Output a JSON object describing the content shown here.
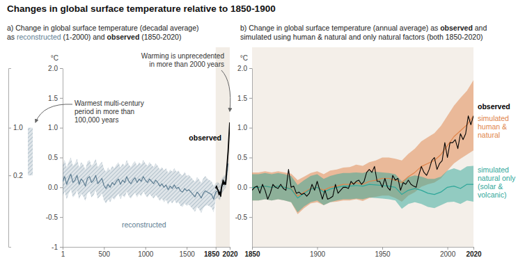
{
  "title": "Changes in global surface temperature relative to 1850-1900",
  "chart_data": [
    {
      "type": "line",
      "subtitle": [
        "a) Change in global surface temperature (decadal average)",
        "as reconstructed (1-2000) and observed (1850-2020)"
      ],
      "ylabel": "°C",
      "xlim": [
        1,
        2020
      ],
      "xticks": [
        1,
        500,
        1000,
        1500,
        1850,
        2020
      ],
      "ylim": [
        -1,
        2
      ],
      "yticks": [
        -1,
        -0.5,
        {
          "value": 0,
          "label": "0.0"
        },
        0.5,
        {
          "value": 1,
          "label": "1.0"
        },
        1.5,
        {
          "value": 2,
          "label": "2.0"
        }
      ],
      "shaded_period": [
        1850,
        2020
      ],
      "series": [
        {
          "name": "reconstructed",
          "color": "#5d7d92",
          "x": [
            1,
            25,
            50,
            75,
            100,
            125,
            150,
            175,
            200,
            225,
            250,
            275,
            300,
            325,
            350,
            375,
            400,
            425,
            450,
            475,
            500,
            525,
            550,
            575,
            600,
            625,
            650,
            675,
            700,
            725,
            750,
            775,
            800,
            825,
            850,
            875,
            900,
            925,
            950,
            975,
            1000,
            1025,
            1050,
            1075,
            1100,
            1125,
            1150,
            1175,
            1200,
            1225,
            1250,
            1275,
            1300,
            1325,
            1350,
            1375,
            1400,
            1425,
            1450,
            1475,
            1500,
            1525,
            1550,
            1575,
            1600,
            1625,
            1650,
            1675,
            1700,
            1725,
            1750,
            1775,
            1800,
            1825,
            1850,
            1875,
            1900,
            1925,
            1950,
            1975,
            2000
          ],
          "values": [
            0.1,
            0.18,
            0.05,
            0.15,
            0.22,
            0.08,
            0.12,
            0.2,
            0.05,
            0.14,
            0.1,
            0.02,
            0.15,
            0.18,
            0.08,
            0.12,
            0.2,
            0.06,
            0.1,
            0.15,
            0.03,
            -0.02,
            0.05,
            0.0,
            0.08,
            0.04,
            0.1,
            0.14,
            0.05,
            0.12,
            0.08,
            0.18,
            0.1,
            0.06,
            0.12,
            0.16,
            0.08,
            0.14,
            0.1,
            0.18,
            0.12,
            0.08,
            0.14,
            0.1,
            0.06,
            0.12,
            0.08,
            0.02,
            0.06,
            0.0,
            0.04,
            -0.04,
            0.02,
            -0.02,
            0.04,
            -0.02,
            0.0,
            -0.06,
            -0.08,
            -0.02,
            -0.06,
            -0.04,
            -0.08,
            -0.12,
            -0.16,
            -0.08,
            -0.12,
            -0.18,
            -0.1,
            -0.06,
            -0.08,
            -0.1,
            -0.12,
            -0.2,
            -0.08,
            -0.06,
            -0.1,
            0.02,
            0.08,
            0.12,
            0.4
          ],
          "upper": [
            0.38,
            0.46,
            0.33,
            0.43,
            0.5,
            0.36,
            0.4,
            0.48,
            0.33,
            0.42,
            0.38,
            0.3,
            0.43,
            0.46,
            0.36,
            0.4,
            0.48,
            0.34,
            0.38,
            0.43,
            0.31,
            0.26,
            0.33,
            0.28,
            0.36,
            0.32,
            0.38,
            0.42,
            0.33,
            0.4,
            0.36,
            0.46,
            0.38,
            0.34,
            0.4,
            0.44,
            0.36,
            0.42,
            0.38,
            0.46,
            0.4,
            0.36,
            0.42,
            0.38,
            0.34,
            0.4,
            0.36,
            0.3,
            0.34,
            0.28,
            0.32,
            0.24,
            0.3,
            0.26,
            0.32,
            0.26,
            0.28,
            0.22,
            0.2,
            0.26,
            0.19,
            0.21,
            0.17,
            0.13,
            0.09,
            0.17,
            0.13,
            0.07,
            0.15,
            0.19,
            0.14,
            0.12,
            0.1,
            0.02,
            0.07,
            0.09,
            0.05,
            0.15,
            0.2,
            0.22,
            0.5
          ],
          "lower": [
            -0.15,
            -0.07,
            -0.2,
            -0.1,
            -0.03,
            -0.17,
            -0.13,
            -0.05,
            -0.2,
            -0.11,
            -0.15,
            -0.23,
            -0.1,
            -0.07,
            -0.17,
            -0.13,
            -0.05,
            -0.19,
            -0.15,
            -0.1,
            -0.22,
            -0.27,
            -0.2,
            -0.25,
            -0.17,
            -0.21,
            -0.15,
            -0.11,
            -0.2,
            -0.13,
            -0.17,
            -0.07,
            -0.15,
            -0.19,
            -0.13,
            -0.09,
            -0.17,
            -0.11,
            -0.15,
            -0.07,
            -0.13,
            -0.17,
            -0.11,
            -0.15,
            -0.19,
            -0.13,
            -0.17,
            -0.23,
            -0.19,
            -0.25,
            -0.21,
            -0.29,
            -0.23,
            -0.27,
            -0.21,
            -0.27,
            -0.25,
            -0.31,
            -0.33,
            -0.27,
            -0.31,
            -0.29,
            -0.33,
            -0.37,
            -0.41,
            -0.33,
            -0.37,
            -0.43,
            -0.35,
            -0.31,
            -0.3,
            -0.32,
            -0.34,
            -0.42,
            -0.2,
            -0.18,
            -0.22,
            -0.1,
            -0.04,
            0.0,
            0.28
          ]
        },
        {
          "name": "observed",
          "color": "#000000",
          "x": [
            1850,
            1860,
            1870,
            1880,
            1890,
            1900,
            1910,
            1920,
            1930,
            1940,
            1950,
            1960,
            1970,
            1980,
            1990,
            2000,
            2010,
            2020
          ],
          "values": [
            -0.02,
            0.02,
            -0.03,
            -0.05,
            -0.12,
            -0.08,
            -0.15,
            0.0,
            0.05,
            0.12,
            0.05,
            0.08,
            0.05,
            0.25,
            0.42,
            0.6,
            0.85,
            1.09
          ]
        }
      ],
      "annotations": [
        {
          "text": [
            "Warming is unprecedented",
            "in more than 2000 years"
          ]
        }
      ],
      "paleo_range": {
        "label": [
          "Warmest multi-century",
          "period in more than",
          "100,000 years"
        ],
        "values": [
          0.2,
          1.0
        ],
        "color": "#5d7d92",
        "ticks": [
          {
            "value": 0.2,
            "label": "0.2"
          },
          {
            "value": 1,
            "label": "1.0"
          }
        ]
      }
    },
    {
      "type": "line",
      "subtitle": [
        "b) Change in global surface temperature (annual average) as observed and",
        "simulated using human & natural and only natural factors (both 1850-2020)"
      ],
      "ylabel": "°C",
      "xlim": [
        1850,
        2020
      ],
      "xticks": [
        1850,
        1900,
        1950,
        2000,
        2020
      ],
      "ylim": [
        -1,
        2
      ],
      "yticks": [
        -0.5,
        {
          "value": 0,
          "label": "0.0"
        },
        0.5,
        {
          "value": 1,
          "label": "1.0"
        },
        1.5,
        {
          "value": 2,
          "label": "2.0"
        }
      ],
      "series": [
        {
          "name": "simulated human & natural",
          "color": "#e0844a",
          "x": [
            1850,
            1855,
            1860,
            1865,
            1870,
            1875,
            1880,
            1885,
            1890,
            1895,
            1900,
            1905,
            1910,
            1915,
            1920,
            1925,
            1930,
            1935,
            1940,
            1945,
            1950,
            1955,
            1960,
            1965,
            1970,
            1975,
            1980,
            1985,
            1990,
            1995,
            2000,
            2005,
            2010,
            2015,
            2020
          ],
          "values": [
            0.0,
            0.0,
            0.02,
            0.0,
            0.02,
            0.0,
            -0.02,
            -0.15,
            -0.08,
            -0.02,
            0.0,
            -0.05,
            0.0,
            0.02,
            0.05,
            0.05,
            0.08,
            0.05,
            0.1,
            0.12,
            0.15,
            0.15,
            0.12,
            0.08,
            0.18,
            0.25,
            0.35,
            0.4,
            0.45,
            0.55,
            0.7,
            0.85,
            0.95,
            1.05,
            1.2
          ],
          "upper": [
            0.25,
            0.25,
            0.27,
            0.25,
            0.27,
            0.25,
            0.23,
            0.12,
            0.18,
            0.24,
            0.27,
            0.22,
            0.28,
            0.3,
            0.33,
            0.34,
            0.38,
            0.36,
            0.42,
            0.45,
            0.5,
            0.5,
            0.48,
            0.45,
            0.56,
            0.65,
            0.77,
            0.84,
            0.91,
            1.03,
            1.2,
            1.37,
            1.5,
            1.62,
            1.8
          ],
          "lower": [
            -0.22,
            -0.22,
            -0.2,
            -0.22,
            -0.2,
            -0.22,
            -0.25,
            -0.45,
            -0.35,
            -0.27,
            -0.25,
            -0.3,
            -0.25,
            -0.24,
            -0.22,
            -0.22,
            -0.2,
            -0.23,
            -0.18,
            -0.16,
            -0.14,
            -0.14,
            -0.18,
            -0.24,
            -0.14,
            -0.08,
            0.01,
            0.05,
            0.08,
            0.15,
            0.28,
            0.4,
            0.48,
            0.55,
            0.62
          ]
        },
        {
          "name": "simulated natural only (solar & volcanic)",
          "color": "#2fa79a",
          "x": [
            1850,
            1855,
            1860,
            1865,
            1870,
            1875,
            1880,
            1885,
            1890,
            1895,
            1900,
            1905,
            1910,
            1915,
            1920,
            1925,
            1930,
            1935,
            1940,
            1945,
            1950,
            1955,
            1960,
            1965,
            1970,
            1975,
            1980,
            1985,
            1990,
            1995,
            2000,
            2005,
            2010,
            2015,
            2020
          ],
          "values": [
            0.0,
            0.0,
            0.02,
            0.0,
            0.02,
            0.0,
            -0.03,
            -0.18,
            -0.1,
            -0.03,
            0.0,
            -0.08,
            -0.03,
            0.0,
            0.02,
            0.02,
            0.03,
            0.02,
            0.05,
            0.04,
            0.03,
            0.02,
            0.0,
            -0.12,
            -0.05,
            -0.02,
            -0.05,
            -0.1,
            -0.12,
            -0.08,
            0.0,
            0.02,
            -0.02,
            0.05,
            0.05
          ],
          "upper": [
            0.22,
            0.22,
            0.24,
            0.22,
            0.24,
            0.22,
            0.19,
            0.04,
            0.12,
            0.19,
            0.22,
            0.14,
            0.19,
            0.22,
            0.24,
            0.24,
            0.25,
            0.24,
            0.27,
            0.26,
            0.25,
            0.24,
            0.22,
            0.1,
            0.17,
            0.2,
            0.18,
            0.14,
            0.14,
            0.18,
            0.28,
            0.32,
            0.28,
            0.35,
            0.36
          ],
          "lower": [
            -0.22,
            -0.22,
            -0.2,
            -0.22,
            -0.2,
            -0.22,
            -0.25,
            -0.42,
            -0.32,
            -0.25,
            -0.22,
            -0.3,
            -0.25,
            -0.22,
            -0.2,
            -0.2,
            -0.19,
            -0.2,
            -0.17,
            -0.18,
            -0.19,
            -0.2,
            -0.22,
            -0.36,
            -0.28,
            -0.25,
            -0.28,
            -0.33,
            -0.35,
            -0.3,
            -0.25,
            -0.24,
            -0.28,
            -0.22,
            -0.24
          ]
        },
        {
          "name": "observed",
          "color": "#000000",
          "x": [
            1850,
            1852,
            1854,
            1856,
            1858,
            1860,
            1862,
            1864,
            1866,
            1868,
            1870,
            1872,
            1874,
            1876,
            1878,
            1880,
            1882,
            1884,
            1886,
            1888,
            1890,
            1892,
            1894,
            1896,
            1898,
            1900,
            1902,
            1904,
            1906,
            1908,
            1910,
            1912,
            1914,
            1916,
            1918,
            1920,
            1922,
            1924,
            1926,
            1928,
            1930,
            1932,
            1934,
            1936,
            1938,
            1940,
            1942,
            1944,
            1946,
            1948,
            1950,
            1952,
            1954,
            1956,
            1958,
            1960,
            1962,
            1964,
            1966,
            1968,
            1970,
            1972,
            1974,
            1976,
            1978,
            1980,
            1982,
            1984,
            1986,
            1988,
            1990,
            1992,
            1994,
            1996,
            1998,
            2000,
            2002,
            2004,
            2006,
            2008,
            2010,
            2012,
            2014,
            2016,
            2018,
            2020
          ],
          "values": [
            -0.05,
            0.0,
            0.02,
            -0.1,
            0.05,
            -0.05,
            -0.2,
            -0.1,
            0.05,
            0.0,
            -0.02,
            0.05,
            -0.02,
            -0.05,
            0.3,
            0.0,
            0.02,
            -0.1,
            -0.08,
            -0.12,
            -0.1,
            -0.15,
            -0.1,
            0.05,
            -0.05,
            0.1,
            -0.05,
            -0.2,
            -0.05,
            -0.2,
            -0.18,
            -0.15,
            0.05,
            -0.1,
            -0.05,
            0.0,
            0.0,
            -0.02,
            0.1,
            0.05,
            0.1,
            0.12,
            0.05,
            0.1,
            0.25,
            0.3,
            0.25,
            0.35,
            0.1,
            0.1,
            0.0,
            0.15,
            0.0,
            -0.05,
            0.2,
            0.12,
            0.15,
            -0.05,
            0.08,
            0.05,
            0.12,
            0.05,
            0.02,
            0.0,
            0.2,
            0.35,
            0.25,
            0.2,
            0.3,
            0.45,
            0.5,
            0.3,
            0.4,
            0.45,
            0.75,
            0.5,
            0.75,
            0.75,
            0.8,
            0.65,
            0.9,
            0.8,
            0.9,
            1.2,
            1.05,
            1.2
          ]
        }
      ]
    }
  ]
}
